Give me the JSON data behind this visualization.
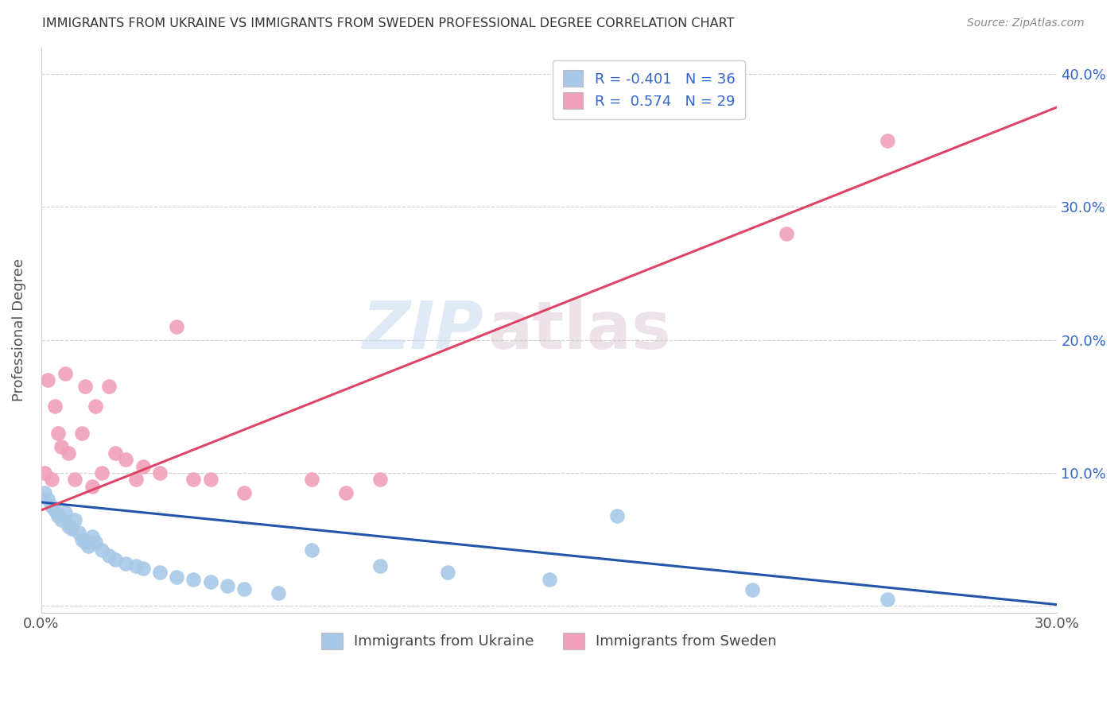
{
  "title": "IMMIGRANTS FROM UKRAINE VS IMMIGRANTS FROM SWEDEN PROFESSIONAL DEGREE CORRELATION CHART",
  "source": "Source: ZipAtlas.com",
  "ylabel": "Professional Degree",
  "watermark_zip": "ZIP",
  "watermark_atlas": "atlas",
  "xlim": [
    0.0,
    0.3
  ],
  "ylim": [
    -0.005,
    0.42
  ],
  "yticks": [
    0.0,
    0.1,
    0.2,
    0.3,
    0.4
  ],
  "ytick_labels": [
    "",
    "10.0%",
    "20.0%",
    "30.0%",
    "40.0%"
  ],
  "xticks": [
    0.0,
    0.05,
    0.1,
    0.15,
    0.2,
    0.25,
    0.3
  ],
  "xtick_labels": [
    "0.0%",
    "",
    "",
    "",
    "",
    "",
    "30.0%"
  ],
  "ukraine_color": "#a8c8e8",
  "sweden_color": "#f0a0b8",
  "ukraine_line_color": "#2255aa",
  "sweden_line_color": "#dd4466",
  "ukraine_line_x": [
    0.0,
    0.3
  ],
  "ukraine_line_y": [
    0.078,
    0.001
  ],
  "sweden_line_x": [
    0.0,
    0.3
  ],
  "sweden_line_y": [
    0.072,
    0.375
  ],
  "ukraine_scatter_x": [
    0.001,
    0.002,
    0.003,
    0.004,
    0.005,
    0.006,
    0.007,
    0.008,
    0.009,
    0.01,
    0.011,
    0.012,
    0.013,
    0.014,
    0.015,
    0.016,
    0.018,
    0.02,
    0.022,
    0.025,
    0.028,
    0.03,
    0.035,
    0.04,
    0.045,
    0.05,
    0.055,
    0.06,
    0.07,
    0.08,
    0.1,
    0.12,
    0.15,
    0.17,
    0.21,
    0.25
  ],
  "ukraine_scatter_y": [
    0.085,
    0.08,
    0.075,
    0.072,
    0.068,
    0.065,
    0.07,
    0.06,
    0.058,
    0.065,
    0.055,
    0.05,
    0.048,
    0.045,
    0.052,
    0.048,
    0.042,
    0.038,
    0.035,
    0.032,
    0.03,
    0.028,
    0.025,
    0.022,
    0.02,
    0.018,
    0.015,
    0.013,
    0.01,
    0.042,
    0.03,
    0.025,
    0.02,
    0.068,
    0.012,
    0.005
  ],
  "sweden_scatter_x": [
    0.001,
    0.002,
    0.003,
    0.004,
    0.005,
    0.006,
    0.007,
    0.008,
    0.01,
    0.012,
    0.013,
    0.015,
    0.016,
    0.018,
    0.02,
    0.022,
    0.025,
    0.028,
    0.03,
    0.035,
    0.04,
    0.045,
    0.05,
    0.06,
    0.08,
    0.09,
    0.1,
    0.22,
    0.25
  ],
  "sweden_scatter_y": [
    0.1,
    0.17,
    0.095,
    0.15,
    0.13,
    0.12,
    0.175,
    0.115,
    0.095,
    0.13,
    0.165,
    0.09,
    0.15,
    0.1,
    0.165,
    0.115,
    0.11,
    0.095,
    0.105,
    0.1,
    0.21,
    0.095,
    0.095,
    0.085,
    0.095,
    0.085,
    0.095,
    0.28,
    0.35
  ],
  "background_color": "#ffffff",
  "grid_color": "#d0d0d0"
}
